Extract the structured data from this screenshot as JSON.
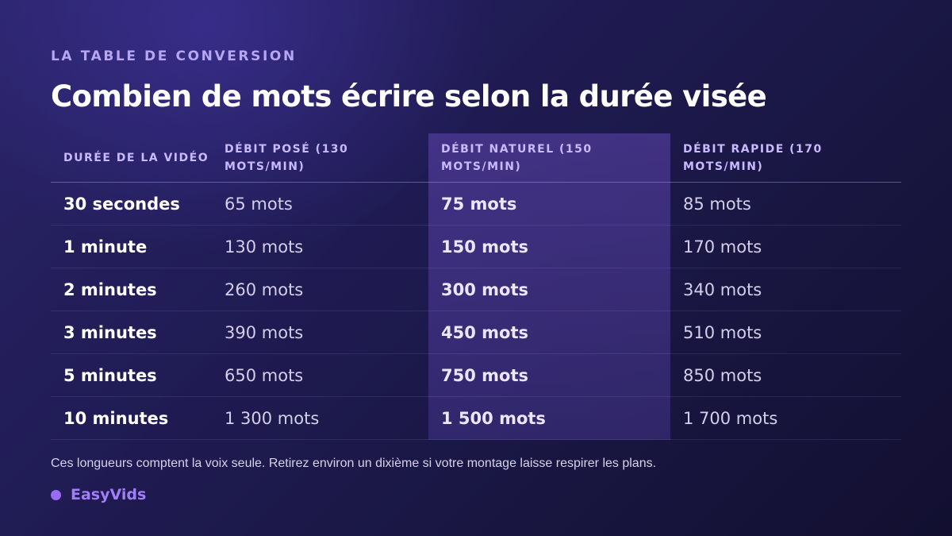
{
  "eyebrow": "LA TABLE DE CONVERSION",
  "title": "Combien de mots écrire selon la durée visée",
  "table": {
    "headers": [
      "DURÉE DE LA VIDÉO",
      "DÉBIT POSÉ (130 MOTS/MIN)",
      "DÉBIT NATUREL (150 MOTS/MIN)",
      "DÉBIT RAPIDE (170 MOTS/MIN)"
    ],
    "rows": [
      [
        "30 secondes",
        "65 mots",
        "75 mots",
        "85 mots"
      ],
      [
        "1 minute",
        "130 mots",
        "150 mots",
        "170 mots"
      ],
      [
        "2 minutes",
        "260 mots",
        "300 mots",
        "340 mots"
      ],
      [
        "3 minutes",
        "390 mots",
        "450 mots",
        "510 mots"
      ],
      [
        "5 minutes",
        "650 mots",
        "750 mots",
        "850 mots"
      ],
      [
        "10 minutes",
        "1 300 mots",
        "1 500 mots",
        "1 700 mots"
      ]
    ],
    "highlight_color": "#4a3a9a"
  },
  "note": "Ces longueurs comptent la voix seule. Retirez environ un dixième si votre montage laisse respirer les plans.",
  "brand": {
    "name": "EasyVids",
    "dot_color": "#9a6cf5"
  },
  "colors": {
    "background": "#1f1b52",
    "accent": "#b7a6f2"
  }
}
